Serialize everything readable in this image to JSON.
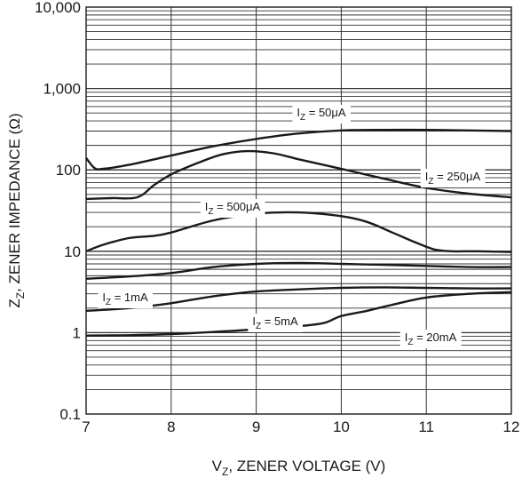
{
  "chart_data": {
    "type": "line",
    "title": "",
    "xlabel": {
      "base": "V",
      "sub": "Z",
      "rest": ", ZENER VOLTAGE (V)"
    },
    "ylabel": {
      "base": "Z",
      "sub": "Z",
      "rest": ", ZENER IMPEDANCE (Ω)"
    },
    "xlim": [
      7,
      12
    ],
    "ylim": [
      0.1,
      10000
    ],
    "yscale": "log",
    "grid": true,
    "x_ticks": [
      "7",
      "8",
      "9",
      "10",
      "11",
      "12"
    ],
    "y_ticks": [
      "0.1",
      "1",
      "10",
      "100",
      "1,000",
      "10,000"
    ],
    "series": [
      {
        "name": "I_Z = 50μA",
        "label": {
          "base": "I",
          "sub": "Z",
          "rest": " = 50μA"
        },
        "x": [
          7.0,
          7.1,
          7.2,
          7.5,
          8.0,
          8.5,
          9.0,
          9.5,
          10.0,
          10.5,
          11.0,
          11.5,
          12.0
        ],
        "y": [
          140,
          105,
          103,
          115,
          150,
          195,
          240,
          280,
          305,
          310,
          310,
          305,
          300
        ]
      },
      {
        "name": "I_Z = 250μA",
        "label": {
          "base": "I",
          "sub": "Z",
          "rest": " = 250μA"
        },
        "x": [
          7.0,
          7.3,
          7.6,
          7.8,
          8.0,
          8.3,
          8.6,
          8.9,
          9.2,
          9.5,
          10.0,
          10.5,
          11.0,
          11.5,
          12.0
        ],
        "y": [
          44,
          45,
          46,
          65,
          88,
          120,
          155,
          170,
          160,
          135,
          103,
          78,
          60,
          51,
          46
        ]
      },
      {
        "name": "I_Z = 500μA",
        "label": {
          "base": "I",
          "sub": "Z",
          "rest": " = 500μA"
        },
        "x": [
          7.0,
          7.2,
          7.5,
          7.8,
          8.0,
          8.5,
          9.0,
          9.5,
          10.0,
          10.3,
          10.6,
          10.9,
          11.1,
          11.3,
          11.6,
          12.0
        ],
        "y": [
          10,
          12,
          14.5,
          15.5,
          17,
          24,
          29,
          30,
          27,
          23,
          17,
          12.5,
          10.5,
          10,
          10,
          9.8
        ]
      },
      {
        "name": "I_Z = 1mA",
        "label": {
          "base": "I",
          "sub": "Z",
          "rest": " = 1mA"
        },
        "x": [
          7.0,
          7.5,
          8.0,
          8.5,
          9.0,
          9.5,
          10.0,
          10.5,
          11.0,
          11.5,
          12.0
        ],
        "y": [
          4.6,
          4.9,
          5.4,
          6.4,
          7.0,
          7.2,
          7.0,
          6.8,
          6.6,
          6.4,
          6.4
        ]
      },
      {
        "name": "I_Z = 5mA",
        "label": {
          "base": "I",
          "sub": "Z",
          "rest": " = 5mA"
        },
        "x": [
          7.0,
          7.5,
          8.0,
          8.5,
          9.0,
          9.5,
          10.0,
          10.5,
          11.0,
          11.5,
          12.0
        ],
        "y": [
          1.85,
          2.0,
          2.3,
          2.8,
          3.2,
          3.4,
          3.55,
          3.6,
          3.55,
          3.5,
          3.5
        ]
      },
      {
        "name": "I_Z = 20mA",
        "label": {
          "base": "I",
          "sub": "Z",
          "rest": " = 20mA"
        },
        "x": [
          7.0,
          7.5,
          8.0,
          8.5,
          9.0,
          9.5,
          9.8,
          10.0,
          10.3,
          10.6,
          11.0,
          11.5,
          12.0
        ],
        "y": [
          0.92,
          0.93,
          0.96,
          1.02,
          1.1,
          1.2,
          1.32,
          1.6,
          1.85,
          2.2,
          2.7,
          3.0,
          3.15
        ]
      }
    ]
  }
}
